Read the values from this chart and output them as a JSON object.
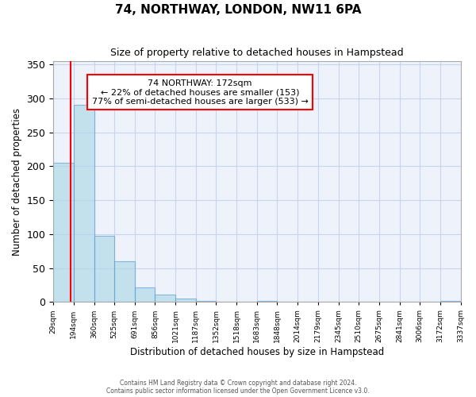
{
  "title": "74, NORTHWAY, LONDON, NW11 6PA",
  "subtitle": "Size of property relative to detached houses in Hampstead",
  "xlabel": "Distribution of detached houses by size in Hampstead",
  "ylabel": "Number of detached properties",
  "bar_values": [
    205,
    291,
    97,
    60,
    21,
    11,
    5,
    1,
    0,
    0,
    1,
    0,
    0,
    0,
    0,
    0,
    0,
    0,
    0,
    2
  ],
  "bar_labels": [
    "29sqm",
    "194sqm",
    "360sqm",
    "525sqm",
    "691sqm",
    "856sqm",
    "1021sqm",
    "1187sqm",
    "1352sqm",
    "1518sqm",
    "1683sqm",
    "1848sqm",
    "2014sqm",
    "2179sqm",
    "2345sqm",
    "2510sqm",
    "2675sqm",
    "2841sqm",
    "3006sqm",
    "3172sqm",
    "3337sqm"
  ],
  "bar_color": "#add8e6",
  "bar_edge_color": "#5b9bd5",
  "bar_alpha": 0.65,
  "marker_line_x": 172,
  "marker_line_color": "red",
  "annotation_title": "74 NORTHWAY: 172sqm",
  "annotation_line1": "← 22% of detached houses are smaller (153)",
  "annotation_line2": "77% of semi-detached houses are larger (533) →",
  "annotation_box_color": "white",
  "annotation_box_edge": "red",
  "ylim": [
    0,
    355
  ],
  "xlim_min": 29,
  "xlim_max": 3337,
  "bin_edges": [
    29,
    194,
    360,
    525,
    691,
    856,
    1021,
    1187,
    1352,
    1518,
    1683,
    1848,
    2014,
    2179,
    2345,
    2510,
    2675,
    2841,
    3006,
    3172,
    3337
  ],
  "footer_line1": "Contains HM Land Registry data © Crown copyright and database right 2024.",
  "footer_line2": "Contains public sector information licensed under the Open Government Licence v3.0.",
  "bg_color": "#eef2fb",
  "grid_color": "#c8d4ec",
  "yticks": [
    0,
    50,
    100,
    150,
    200,
    250,
    300,
    350
  ]
}
